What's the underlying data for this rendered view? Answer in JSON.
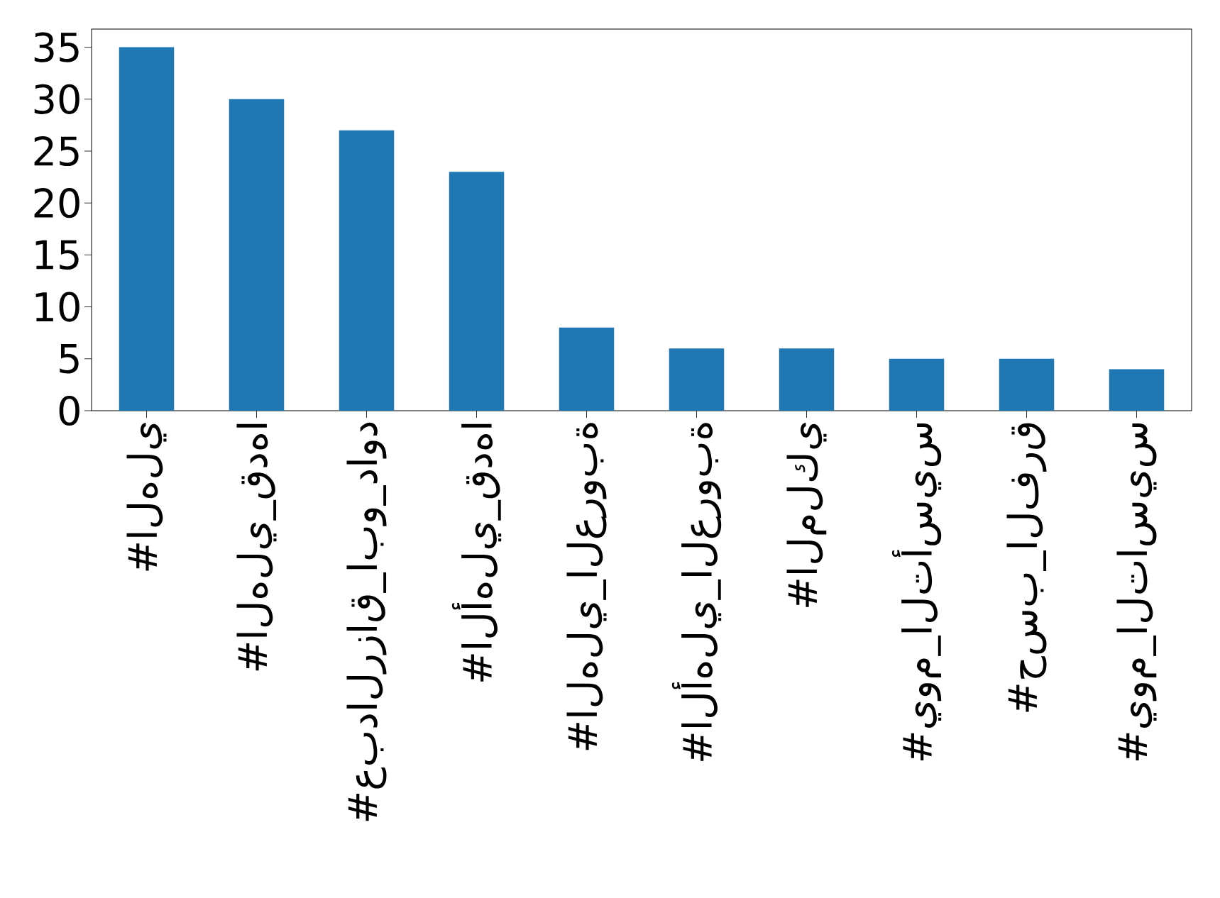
{
  "chart_data": {
    "type": "bar",
    "categories": [
      "#الهلي",
      "#الهلي_قدها",
      "#عبدالرزاق_ابو_داود",
      "#الأهلي_قدها",
      "#الهلي_العروبة",
      "#الأهلي_العروبة",
      "#الملكي",
      "#يوم_التأسيس",
      "#حسب_الفرق",
      "#يوم_التاسيس"
    ],
    "values": [
      35,
      30,
      27,
      23,
      8,
      6,
      6,
      5,
      5,
      4
    ],
    "color": "#1f77b4",
    "ylim": [
      0,
      36.75
    ],
    "yticks": [
      0,
      5,
      10,
      15,
      20,
      25,
      30,
      35
    ]
  }
}
